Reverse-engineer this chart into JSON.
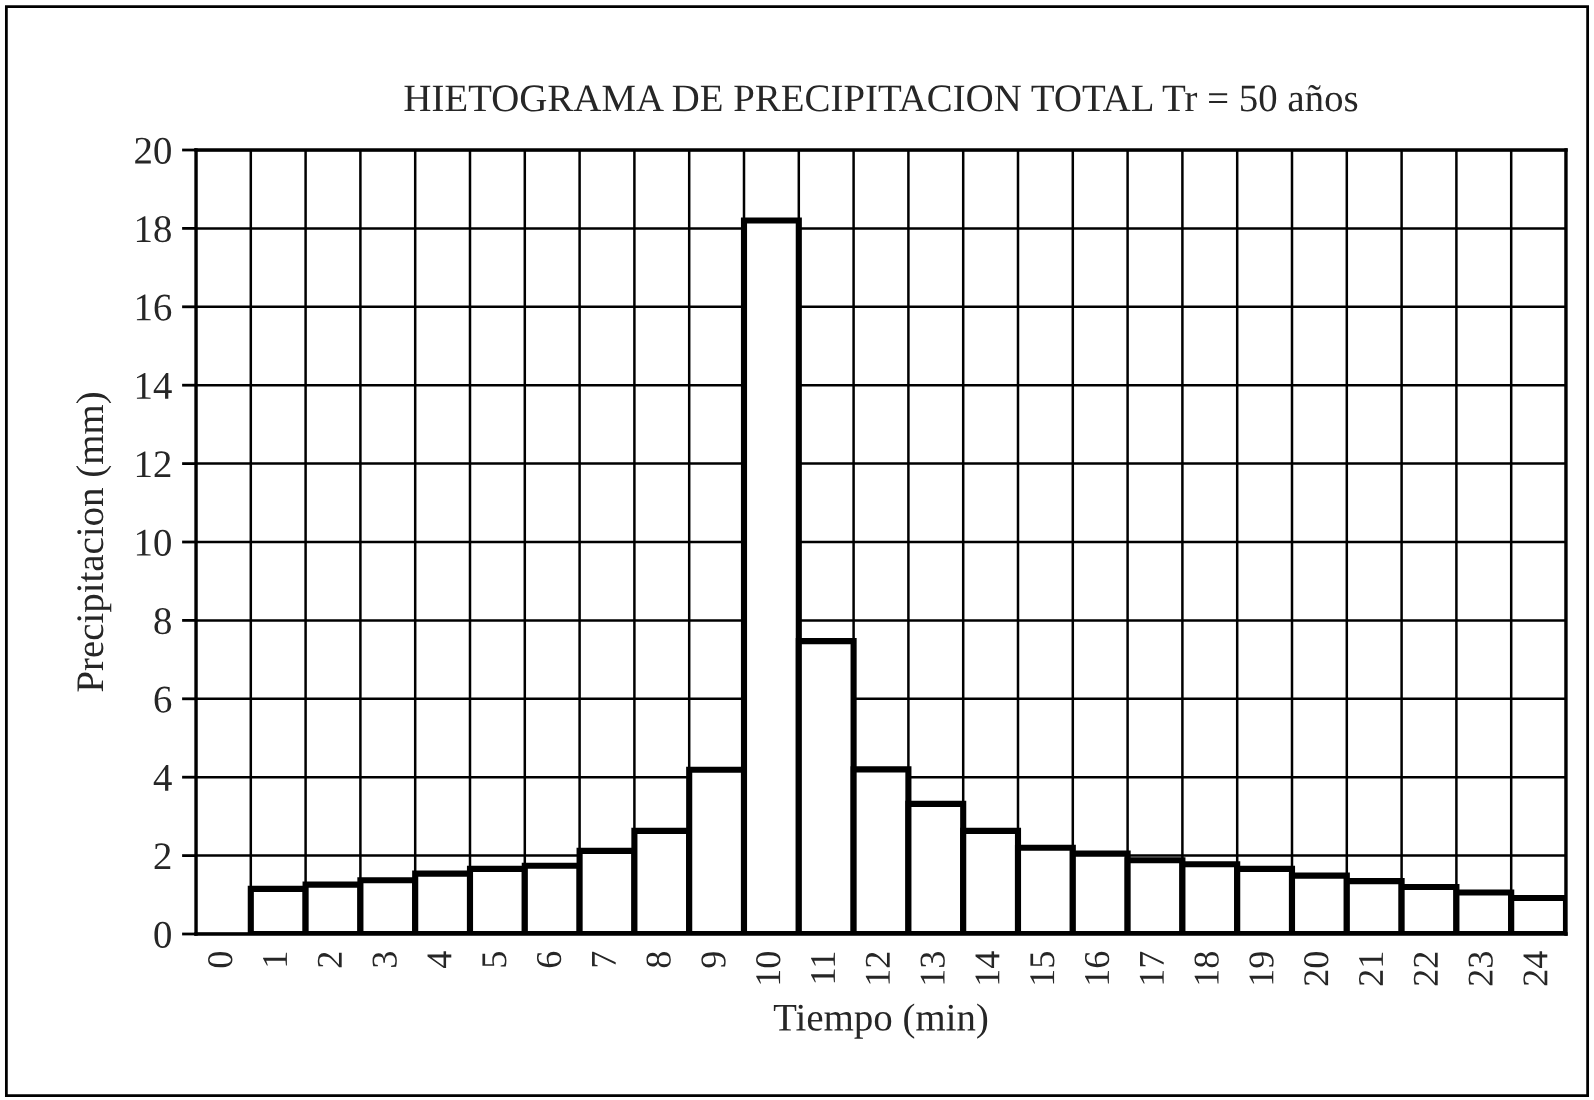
{
  "chart_data": {
    "type": "bar",
    "title": "HIETOGRAMA DE PRECIPITACION TOTAL Tr = 50 años",
    "xlabel": "Tiempo (min)",
    "ylabel": "Precipitacion (mm)",
    "categories": [
      "0",
      "1",
      "2",
      "3",
      "4",
      "5",
      "6",
      "7",
      "8",
      "9",
      "10",
      "11",
      "12",
      "13",
      "14",
      "15",
      "16",
      "17",
      "18",
      "19",
      "20",
      "21",
      "22",
      "23",
      "24"
    ],
    "values": [
      null,
      1.15,
      1.26,
      1.37,
      1.54,
      1.66,
      1.74,
      2.12,
      2.63,
      4.19,
      18.2,
      7.47,
      4.2,
      3.32,
      2.63,
      2.2,
      2.05,
      1.88,
      1.78,
      1.66,
      1.49,
      1.35,
      1.2,
      1.06,
      0.92
    ],
    "color": "#ffffff",
    "ylim": [
      0,
      20
    ],
    "yticks": [
      0,
      2,
      4,
      6,
      8,
      10,
      12,
      14,
      16,
      18,
      20
    ],
    "grid": true,
    "legend": false
  }
}
